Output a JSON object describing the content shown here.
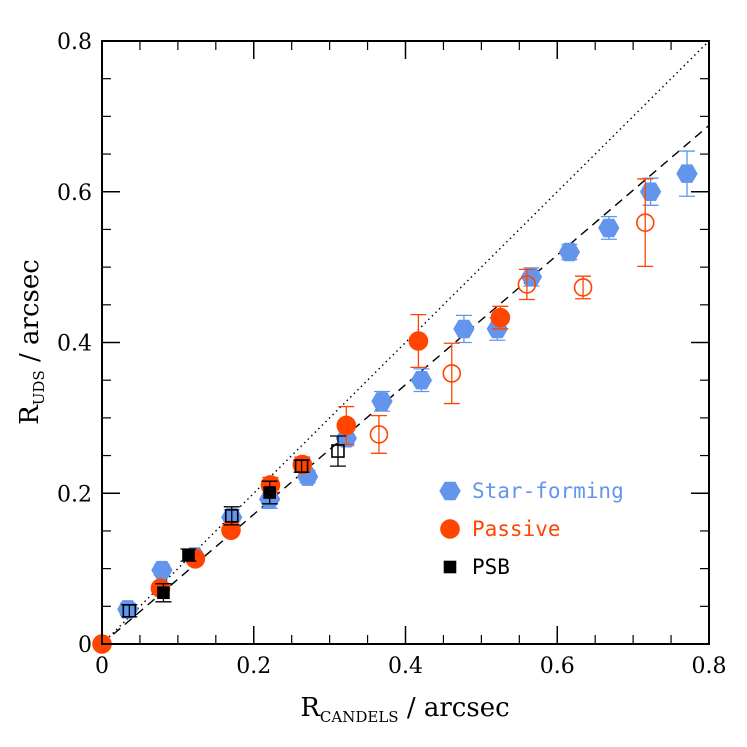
{
  "chart_data": {
    "type": "scatter",
    "xlabel": {
      "main": "R",
      "sub": "CANDELS",
      "rest": " / arcsec"
    },
    "ylabel": {
      "main": "R",
      "sub": "UDS",
      "rest": " / arcsec"
    },
    "xlim": [
      0,
      0.8
    ],
    "ylim": [
      0,
      0.8
    ],
    "x_ticks": [
      "0",
      "0.2",
      "0.4",
      "0.6",
      "0.8"
    ],
    "y_ticks": [
      "0",
      "0.2",
      "0.4",
      "0.6",
      "0.8"
    ],
    "grid": false,
    "legend_position": "lower-right",
    "reference_lines": [
      {
        "style": "dotted",
        "slope": 1.0,
        "intercept": 0.0
      },
      {
        "style": "dashed",
        "slope": 0.86,
        "intercept": 0.0
      }
    ],
    "series": [
      {
        "name": "Star-forming",
        "marker": "hexagon",
        "color": "#6495ed",
        "filled": true,
        "points": [
          {
            "x": 0.034,
            "y": 0.046,
            "err": 0.008
          },
          {
            "x": 0.079,
            "y": 0.098,
            "err": 0.007
          },
          {
            "x": 0.122,
            "y": 0.116,
            "err": 0.006
          },
          {
            "x": 0.171,
            "y": 0.168,
            "err": 0.01
          },
          {
            "x": 0.221,
            "y": 0.192,
            "err": 0.012
          },
          {
            "x": 0.271,
            "y": 0.222,
            "err": 0.008
          },
          {
            "x": 0.322,
            "y": 0.273,
            "err": 0.01
          },
          {
            "x": 0.369,
            "y": 0.322,
            "err": 0.013
          },
          {
            "x": 0.421,
            "y": 0.35,
            "err": 0.015
          },
          {
            "x": 0.477,
            "y": 0.418,
            "err": 0.018
          },
          {
            "x": 0.521,
            "y": 0.418,
            "err": 0.015
          },
          {
            "x": 0.566,
            "y": 0.487,
            "err": 0.012
          },
          {
            "x": 0.616,
            "y": 0.52,
            "err": 0.01
          },
          {
            "x": 0.668,
            "y": 0.552,
            "err": 0.015
          },
          {
            "x": 0.723,
            "y": 0.6,
            "err": 0.018
          },
          {
            "x": 0.771,
            "y": 0.624,
            "err": 0.03
          }
        ]
      },
      {
        "name": "Passive",
        "marker": "circle",
        "color": "#ff4500",
        "filled": true,
        "points": [
          {
            "x": 0.0,
            "y": 0.0,
            "err": 0.0
          },
          {
            "x": 0.077,
            "y": 0.074,
            "err": 0.006
          },
          {
            "x": 0.123,
            "y": 0.113,
            "err": 0.006
          },
          {
            "x": 0.17,
            "y": 0.151,
            "err": 0.007
          },
          {
            "x": 0.222,
            "y": 0.211,
            "err": 0.01
          },
          {
            "x": 0.264,
            "y": 0.238,
            "err": 0.01
          },
          {
            "x": 0.322,
            "y": 0.29,
            "err": 0.025
          },
          {
            "x": 0.417,
            "y": 0.402,
            "err": 0.035
          },
          {
            "x": 0.525,
            "y": 0.433,
            "err": 0.015
          }
        ]
      },
      {
        "name": "Passive (open)",
        "marker": "circle",
        "color": "#ff4500",
        "filled": false,
        "points": [
          {
            "x": 0.365,
            "y": 0.278,
            "err": 0.025
          },
          {
            "x": 0.461,
            "y": 0.359,
            "err": 0.04
          },
          {
            "x": 0.56,
            "y": 0.477,
            "err": 0.02
          },
          {
            "x": 0.634,
            "y": 0.473,
            "err": 0.015
          },
          {
            "x": 0.716,
            "y": 0.559,
            "err": 0.058
          }
        ]
      },
      {
        "name": "PSB",
        "marker": "square",
        "color": "#000000",
        "filled": true,
        "points": [
          {
            "x": 0.081,
            "y": 0.068,
            "err": 0.012
          },
          {
            "x": 0.114,
            "y": 0.118,
            "err": 0.008
          },
          {
            "x": 0.221,
            "y": 0.201,
            "err": 0.015
          }
        ]
      },
      {
        "name": "PSB (open)",
        "marker": "square",
        "color": "#000000",
        "filled": false,
        "points": [
          {
            "x": 0.036,
            "y": 0.044,
            "err": 0.008
          },
          {
            "x": 0.171,
            "y": 0.17,
            "err": 0.012
          },
          {
            "x": 0.263,
            "y": 0.236,
            "err": 0.008
          },
          {
            "x": 0.311,
            "y": 0.256,
            "err": 0.02
          }
        ]
      }
    ],
    "legend": [
      {
        "label": "Star-forming",
        "marker": "hexagon",
        "color": "#6495ed"
      },
      {
        "label": "Passive",
        "marker": "circle",
        "color": "#ff4500"
      },
      {
        "label": "PSB",
        "marker": "square",
        "color": "#000000"
      }
    ]
  }
}
